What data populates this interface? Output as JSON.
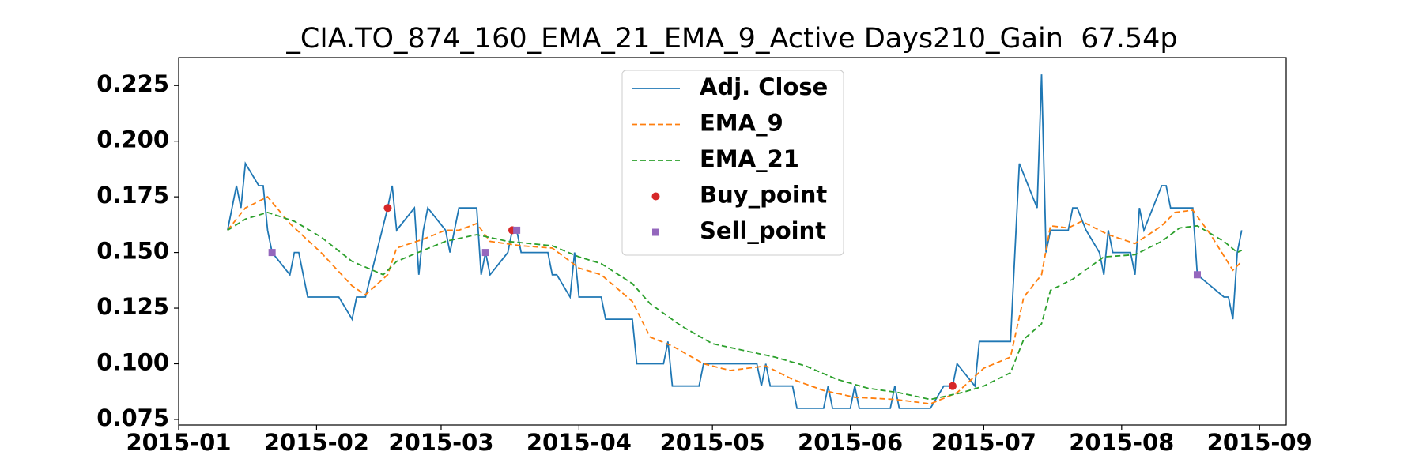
{
  "chart_data": {
    "type": "line",
    "title": "_CIA.TO_874_160_EMA_21_EMA_9_Active Days210_Gain  67.54p",
    "legend": "upper center",
    "xlim": [
      "2015-01-01",
      "2015-09-07"
    ],
    "xticks": [
      "2015-01",
      "2015-02",
      "2015-03",
      "2015-04",
      "2015-05",
      "2015-06",
      "2015-07",
      "2015-08",
      "2015-09"
    ],
    "ylim": [
      0.0725,
      0.2375
    ],
    "yticks": [
      0.075,
      {
        "value": 0.1,
        "label": "0.100"
      },
      0.125,
      {
        "value": 0.15,
        "label": "0.150"
      },
      0.175,
      {
        "value": 0.2,
        "label": "0.200"
      },
      0.225
    ],
    "series": [
      {
        "name": "Adj. Close",
        "color": "#1f77b4",
        "linestyle": "solid",
        "marker": "none",
        "x": [
          "2015-01-12",
          "2015-01-14",
          "2015-01-15",
          "2015-01-16",
          "2015-01-19",
          "2015-01-20",
          "2015-01-21",
          "2015-01-22",
          "2015-01-26",
          "2015-01-27",
          "2015-01-28",
          "2015-01-30",
          "2015-02-06",
          "2015-02-09",
          "2015-02-10",
          "2015-02-12",
          "2015-02-17",
          "2015-02-18",
          "2015-02-19",
          "2015-02-23",
          "2015-02-24",
          "2015-02-25",
          "2015-02-26",
          "2015-03-02",
          "2015-03-03",
          "2015-03-05",
          "2015-03-09",
          "2015-03-10",
          "2015-03-11",
          "2015-03-12",
          "2015-03-16",
          "2015-03-17",
          "2015-03-18",
          "2015-03-19",
          "2015-03-25",
          "2015-03-26",
          "2015-03-27",
          "2015-03-30",
          "2015-03-31",
          "2015-04-01",
          "2015-04-06",
          "2015-04-07",
          "2015-04-13",
          "2015-04-14",
          "2015-04-20",
          "2015-04-21",
          "2015-04-22",
          "2015-04-28",
          "2015-04-29",
          "2015-05-11",
          "2015-05-12",
          "2015-05-13",
          "2015-05-14",
          "2015-05-19",
          "2015-05-20",
          "2015-05-26",
          "2015-05-27",
          "2015-05-28",
          "2015-06-01",
          "2015-06-02",
          "2015-06-03",
          "2015-06-10",
          "2015-06-11",
          "2015-06-12",
          "2015-06-19",
          "2015-06-22",
          "2015-06-24",
          "2015-06-25",
          "2015-06-29",
          "2015-06-30",
          "2015-07-07",
          "2015-07-08",
          "2015-07-09",
          "2015-07-13",
          "2015-07-14",
          "2015-07-15",
          "2015-07-16",
          "2015-07-20",
          "2015-07-21",
          "2015-07-22",
          "2015-07-24",
          "2015-07-27",
          "2015-07-28",
          "2015-07-29",
          "2015-07-30",
          "2015-08-03",
          "2015-08-04",
          "2015-08-05",
          "2015-08-06",
          "2015-08-10",
          "2015-08-11",
          "2015-08-12",
          "2015-08-17",
          "2015-08-18",
          "2015-08-24",
          "2015-08-25",
          "2015-08-26",
          "2015-08-27",
          "2015-08-28"
        ],
        "values": [
          0.16,
          0.18,
          0.17,
          0.19,
          0.18,
          0.18,
          0.16,
          0.15,
          0.14,
          0.15,
          0.15,
          0.13,
          0.13,
          0.12,
          0.13,
          0.13,
          0.17,
          0.18,
          0.16,
          0.17,
          0.14,
          0.16,
          0.17,
          0.16,
          0.15,
          0.17,
          0.17,
          0.14,
          0.15,
          0.14,
          0.15,
          0.16,
          0.16,
          0.15,
          0.15,
          0.14,
          0.14,
          0.13,
          0.15,
          0.13,
          0.13,
          0.12,
          0.12,
          0.1,
          0.1,
          0.11,
          0.09,
          0.09,
          0.1,
          0.1,
          0.09,
          0.1,
          0.09,
          0.09,
          0.08,
          0.08,
          0.09,
          0.08,
          0.08,
          0.09,
          0.08,
          0.08,
          0.09,
          0.08,
          0.08,
          0.09,
          0.09,
          0.1,
          0.09,
          0.11,
          0.11,
          0.15,
          0.19,
          0.17,
          0.23,
          0.15,
          0.16,
          0.16,
          0.17,
          0.17,
          0.16,
          0.15,
          0.14,
          0.16,
          0.15,
          0.15,
          0.14,
          0.17,
          0.16,
          0.18,
          0.18,
          0.17,
          0.17,
          0.14,
          0.13,
          0.13,
          0.12,
          0.15,
          0.16
        ]
      },
      {
        "name": "EMA_9",
        "color": "#ff7f0e",
        "linestyle": "dashed",
        "marker": "none",
        "x": [
          "2015-01-12",
          "2015-01-16",
          "2015-01-21",
          "2015-01-26",
          "2015-02-02",
          "2015-02-09",
          "2015-02-12",
          "2015-02-17",
          "2015-02-19",
          "2015-02-25",
          "2015-03-02",
          "2015-03-05",
          "2015-03-09",
          "2015-03-12",
          "2015-03-19",
          "2015-03-26",
          "2015-04-01",
          "2015-04-06",
          "2015-04-13",
          "2015-04-17",
          "2015-04-22",
          "2015-04-29",
          "2015-05-05",
          "2015-05-13",
          "2015-05-19",
          "2015-05-26",
          "2015-06-02",
          "2015-06-11",
          "2015-06-19",
          "2015-06-25",
          "2015-07-01",
          "2015-07-07",
          "2015-07-10",
          "2015-07-14",
          "2015-07-16",
          "2015-07-20",
          "2015-07-23",
          "2015-07-29",
          "2015-08-04",
          "2015-08-10",
          "2015-08-13",
          "2015-08-17",
          "2015-08-21",
          "2015-08-26",
          "2015-08-28"
        ],
        "values": [
          0.16,
          0.17,
          0.175,
          0.163,
          0.15,
          0.135,
          0.131,
          0.14,
          0.152,
          0.156,
          0.16,
          0.16,
          0.163,
          0.155,
          0.153,
          0.152,
          0.143,
          0.14,
          0.128,
          0.112,
          0.108,
          0.1,
          0.097,
          0.099,
          0.093,
          0.088,
          0.085,
          0.084,
          0.082,
          0.087,
          0.098,
          0.103,
          0.13,
          0.14,
          0.162,
          0.161,
          0.164,
          0.158,
          0.154,
          0.162,
          0.168,
          0.169,
          0.158,
          0.142,
          0.146
        ]
      },
      {
        "name": "EMA_21",
        "color": "#2ca02c",
        "linestyle": "dashed",
        "marker": "none",
        "x": [
          "2015-01-12",
          "2015-01-16",
          "2015-01-21",
          "2015-01-27",
          "2015-02-02",
          "2015-02-09",
          "2015-02-16",
          "2015-02-19",
          "2015-02-25",
          "2015-03-02",
          "2015-03-09",
          "2015-03-16",
          "2015-03-26",
          "2015-04-01",
          "2015-04-06",
          "2015-04-13",
          "2015-04-17",
          "2015-04-24",
          "2015-05-01",
          "2015-05-08",
          "2015-05-15",
          "2015-05-22",
          "2015-05-29",
          "2015-06-05",
          "2015-06-12",
          "2015-06-19",
          "2015-06-26",
          "2015-07-01",
          "2015-07-07",
          "2015-07-10",
          "2015-07-14",
          "2015-07-16",
          "2015-07-21",
          "2015-07-28",
          "2015-08-04",
          "2015-08-10",
          "2015-08-14",
          "2015-08-18",
          "2015-08-24",
          "2015-08-27",
          "2015-08-28"
        ],
        "values": [
          0.16,
          0.165,
          0.168,
          0.164,
          0.157,
          0.146,
          0.14,
          0.146,
          0.151,
          0.155,
          0.158,
          0.155,
          0.153,
          0.148,
          0.145,
          0.136,
          0.127,
          0.117,
          0.109,
          0.106,
          0.103,
          0.099,
          0.093,
          0.089,
          0.087,
          0.084,
          0.087,
          0.09,
          0.096,
          0.111,
          0.118,
          0.133,
          0.138,
          0.148,
          0.149,
          0.155,
          0.161,
          0.162,
          0.155,
          0.15,
          0.151
        ]
      },
      {
        "name": "Buy_point",
        "color": "#d62728",
        "linestyle": "none",
        "marker": "circle",
        "x": [
          "2015-02-17",
          "2015-03-17",
          "2015-06-24"
        ],
        "values": [
          0.17,
          0.16,
          0.09
        ]
      },
      {
        "name": "Sell_point",
        "color": "#9467bd",
        "linestyle": "none",
        "marker": "square",
        "x": [
          "2015-01-22",
          "2015-03-11",
          "2015-03-18",
          "2015-08-18"
        ],
        "values": [
          0.15,
          0.15,
          0.16,
          0.14
        ]
      }
    ]
  }
}
